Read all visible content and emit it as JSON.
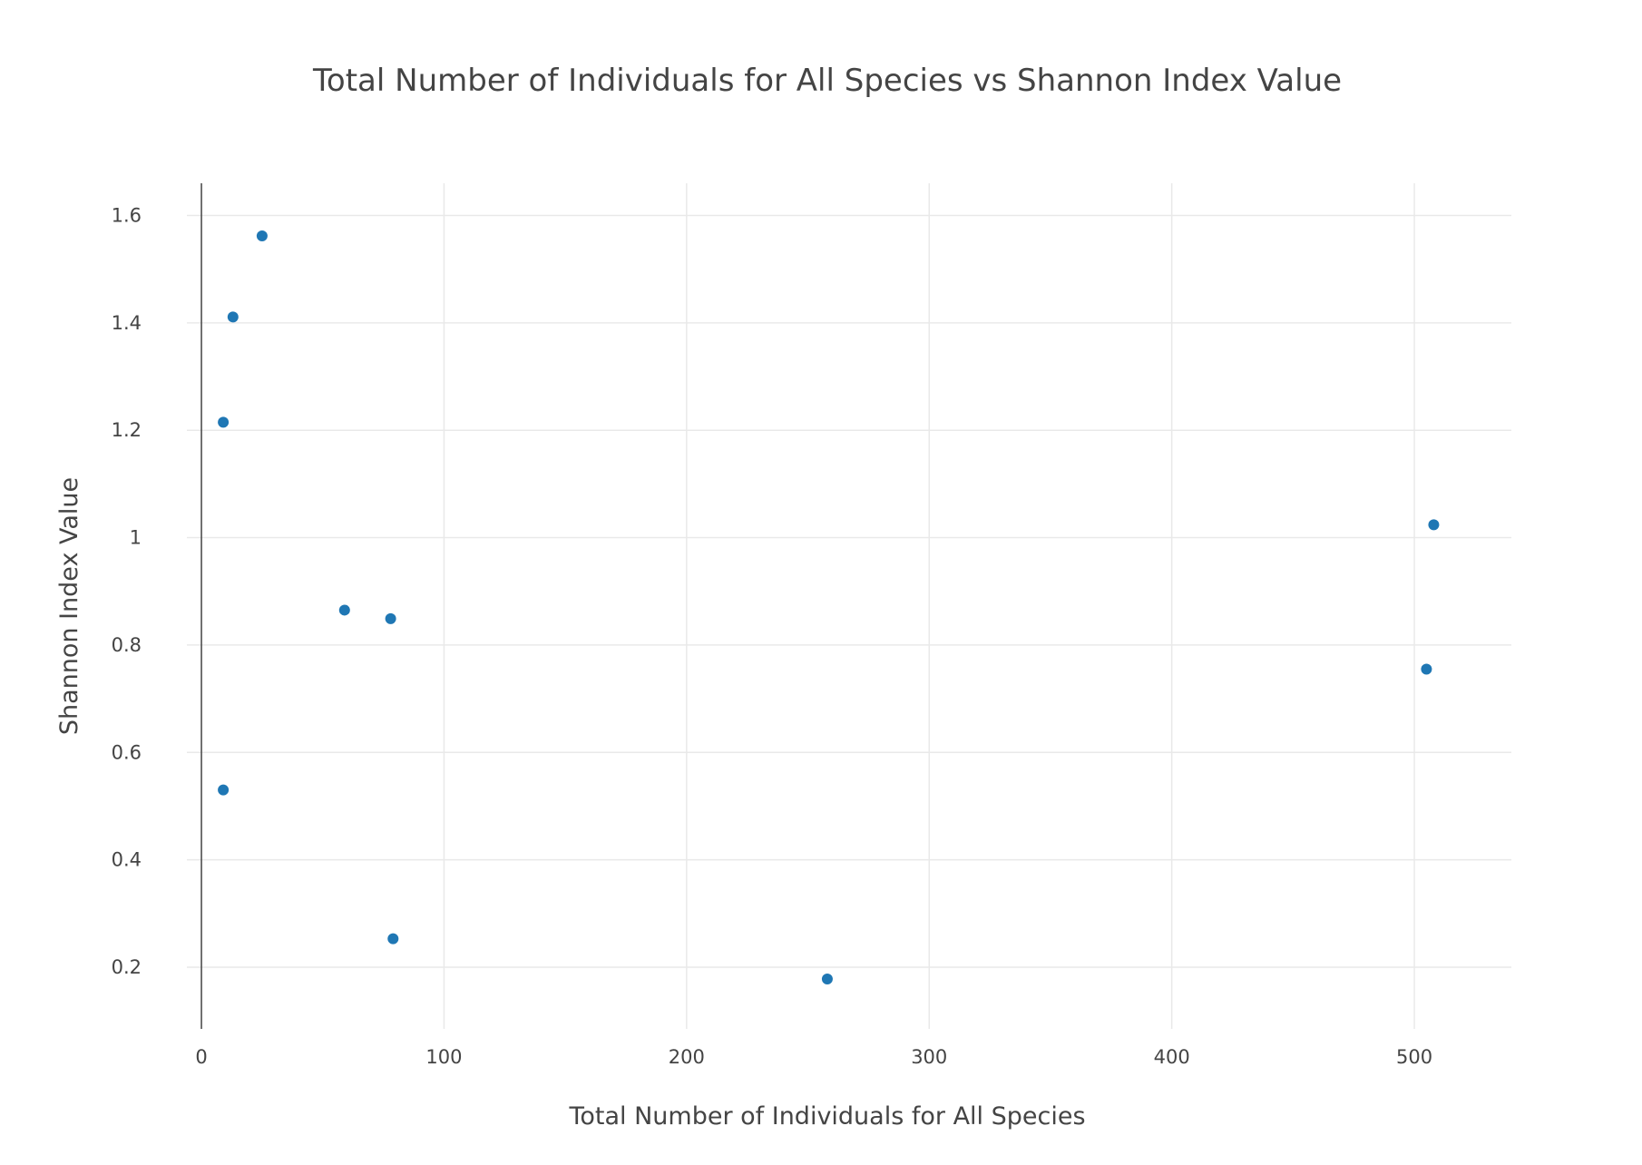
{
  "chart_data": {
    "type": "scatter",
    "title": "Total Number of Individuals for All Species vs Shannon Index Value",
    "xlabel": "Total Number of Individuals for All Species",
    "ylabel": "Shannon Index Value",
    "xlim": [
      -6,
      540
    ],
    "ylim": [
      0.085,
      1.66
    ],
    "x_ticks": [
      0,
      100,
      200,
      300,
      400,
      500
    ],
    "y_ticks": [
      0.2,
      0.4,
      0.6,
      0.8,
      1,
      1.2,
      1.4,
      1.6
    ],
    "x_tick_labels": [
      "0",
      "100",
      "200",
      "300",
      "400",
      "500"
    ],
    "y_tick_labels": [
      "0.2",
      "0.4",
      "0.6",
      "0.8",
      "1",
      "1.2",
      "1.4",
      "1.6"
    ],
    "grid": true,
    "marker_color": "#1f77b4",
    "series": [
      {
        "x": [
          25,
          13,
          9,
          59,
          78,
          9,
          79,
          258,
          508,
          505
        ],
        "y": [
          1.562,
          1.411,
          1.215,
          0.865,
          0.849,
          0.53,
          0.253,
          0.178,
          1.024,
          0.755
        ]
      }
    ]
  }
}
